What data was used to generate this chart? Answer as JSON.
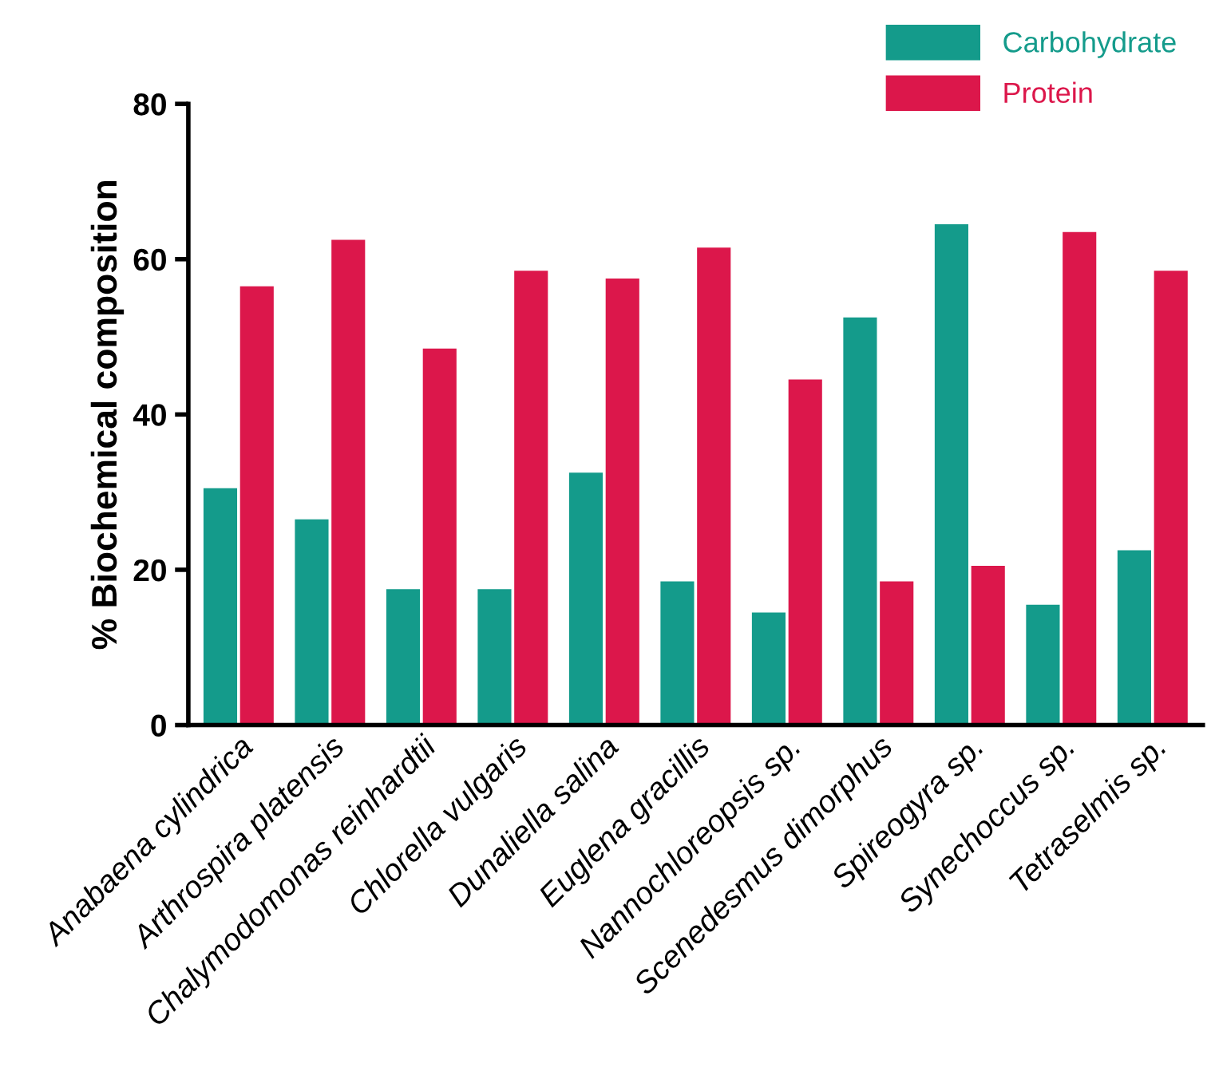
{
  "chart_data": {
    "type": "bar",
    "ylabel": "% Biochemical composition",
    "categories": [
      "Anabaena cylindrica",
      "Arthrospira platensis",
      "Chalymodomonas reinhardtii",
      "Chlorella vulgaris",
      "Dunaliella salina",
      "Euglena gracillis",
      "Nannochloreopsis sp.",
      "Scenedesmus dimorphus",
      "Spireogyra sp.",
      "Synechoccus sp.",
      "Tetraselmis sp."
    ],
    "series": [
      {
        "name": "Carbohydrate",
        "color": "#149b8b",
        "values": [
          30.5,
          26.5,
          17.5,
          17.5,
          32.5,
          18.5,
          14.5,
          52.5,
          64.5,
          15.5,
          22.5
        ]
      },
      {
        "name": "Protein",
        "color": "#dc174b",
        "values": [
          56.5,
          62.5,
          48.5,
          58.5,
          57.5,
          61.5,
          44.5,
          18.5,
          20.5,
          63.5,
          58.5
        ]
      }
    ],
    "ylim": [
      0,
      80
    ],
    "yticks": [
      0,
      20,
      40,
      60,
      80
    ],
    "grid": false,
    "legend": "top right"
  }
}
